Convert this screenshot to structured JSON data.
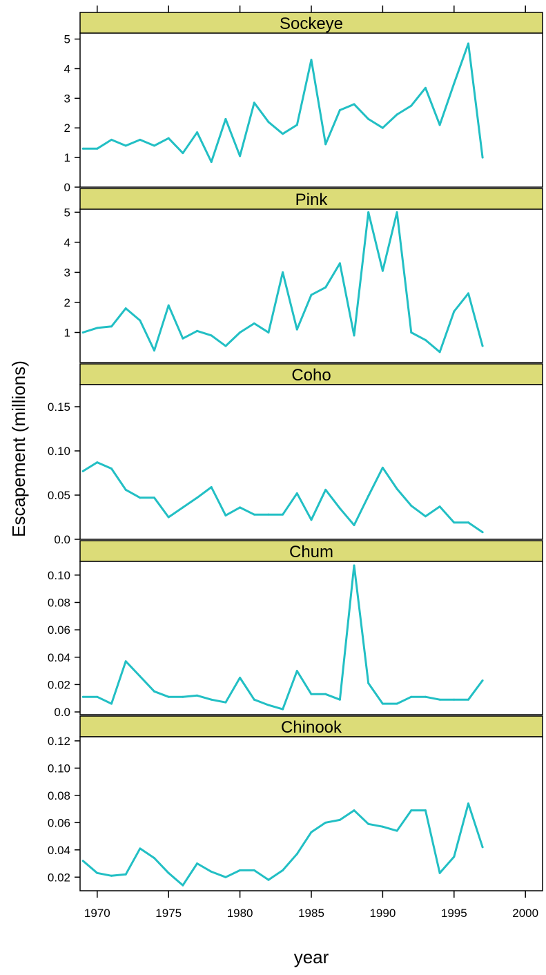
{
  "chart_data": {
    "type": "line",
    "layout": "stacked-panels",
    "xlabel": "year",
    "ylabel": "Escapement (millions)",
    "xlim": [
      1968.8,
      2001.2
    ],
    "x_ticks": [
      1970,
      1975,
      1980,
      1985,
      1990,
      1995,
      2000
    ],
    "line_color": "#22bfc4",
    "strip_color": "#dcdc78",
    "x": [
      1969,
      1970,
      1971,
      1972,
      1973,
      1974,
      1975,
      1976,
      1977,
      1978,
      1979,
      1980,
      1981,
      1982,
      1983,
      1984,
      1985,
      1986,
      1987,
      1988,
      1989,
      1990,
      1991,
      1992,
      1993,
      1994,
      1995,
      1996,
      1997
    ],
    "panels": [
      {
        "name": "Sockeye",
        "ylim": [
          0,
          5.2
        ],
        "y_ticks": [
          0,
          1,
          2,
          3,
          4,
          5
        ],
        "tick_labels": [
          "0",
          "1",
          "2",
          "3",
          "4",
          "5"
        ],
        "values": [
          1.3,
          1.3,
          1.6,
          1.4,
          1.6,
          1.4,
          1.65,
          1.15,
          1.85,
          0.85,
          2.3,
          1.05,
          2.85,
          2.2,
          1.8,
          2.1,
          4.3,
          1.45,
          2.6,
          2.8,
          2.3,
          2.0,
          2.45,
          2.75,
          3.35,
          2.1,
          3.5,
          4.85,
          1.0
        ]
      },
      {
        "name": "Pink",
        "ylim": [
          0,
          5.1
        ],
        "y_ticks": [
          1,
          2,
          3,
          4,
          5
        ],
        "tick_labels": [
          "1",
          "2",
          "3",
          "4",
          "5"
        ],
        "values": [
          1.0,
          1.15,
          1.2,
          1.8,
          1.4,
          0.4,
          1.9,
          0.8,
          1.05,
          0.9,
          0.55,
          1.0,
          1.3,
          1.0,
          3.0,
          1.1,
          2.25,
          2.5,
          3.3,
          0.9,
          5.0,
          3.05,
          5.0,
          1.0,
          0.75,
          0.35,
          1.7,
          2.3,
          0.55
        ]
      },
      {
        "name": "Coho",
        "ylim": [
          0,
          0.175
        ],
        "y_ticks": [
          0.0,
          0.05,
          0.1,
          0.15
        ],
        "tick_labels": [
          "0.0",
          "0.05",
          "0.10",
          "0.15"
        ],
        "values": [
          0.077,
          0.087,
          0.08,
          0.056,
          0.047,
          0.047,
          0.025,
          0.036,
          0.047,
          0.059,
          0.027,
          0.036,
          0.028,
          0.028,
          0.028,
          0.052,
          0.022,
          0.056,
          0.035,
          0.016,
          0.049,
          0.081,
          0.057,
          0.038,
          0.026,
          0.037,
          0.019,
          0.019,
          0.008
        ]
      },
      {
        "name": "Chum",
        "ylim": [
          -0.002,
          0.11
        ],
        "y_ticks": [
          0.0,
          0.02,
          0.04,
          0.06,
          0.08,
          0.1
        ],
        "tick_labels": [
          "0.0",
          "0.02",
          "0.04",
          "0.06",
          "0.08",
          "0.10"
        ],
        "values": [
          0.011,
          0.011,
          0.006,
          0.037,
          0.026,
          0.015,
          0.011,
          0.011,
          0.012,
          0.009,
          0.007,
          0.025,
          0.009,
          0.005,
          0.002,
          0.03,
          0.013,
          0.013,
          0.009,
          0.107,
          0.021,
          0.006,
          0.006,
          0.011,
          0.011,
          0.009,
          0.009,
          0.009,
          0.023
        ]
      },
      {
        "name": "Chinook",
        "ylim": [
          0.01,
          0.123
        ],
        "y_ticks": [
          0.02,
          0.04,
          0.06,
          0.08,
          0.1,
          0.12
        ],
        "tick_labels": [
          "0.02",
          "0.04",
          "0.06",
          "0.08",
          "0.10",
          "0.12"
        ],
        "values": [
          0.032,
          0.023,
          0.021,
          0.022,
          0.041,
          0.034,
          0.023,
          0.014,
          0.03,
          0.024,
          0.02,
          0.025,
          0.025,
          0.018,
          0.025,
          0.037,
          0.053,
          0.06,
          0.062,
          0.069,
          0.059,
          0.057,
          0.054,
          0.069,
          0.069,
          0.023,
          0.035,
          0.074,
          0.042
        ]
      }
    ]
  }
}
